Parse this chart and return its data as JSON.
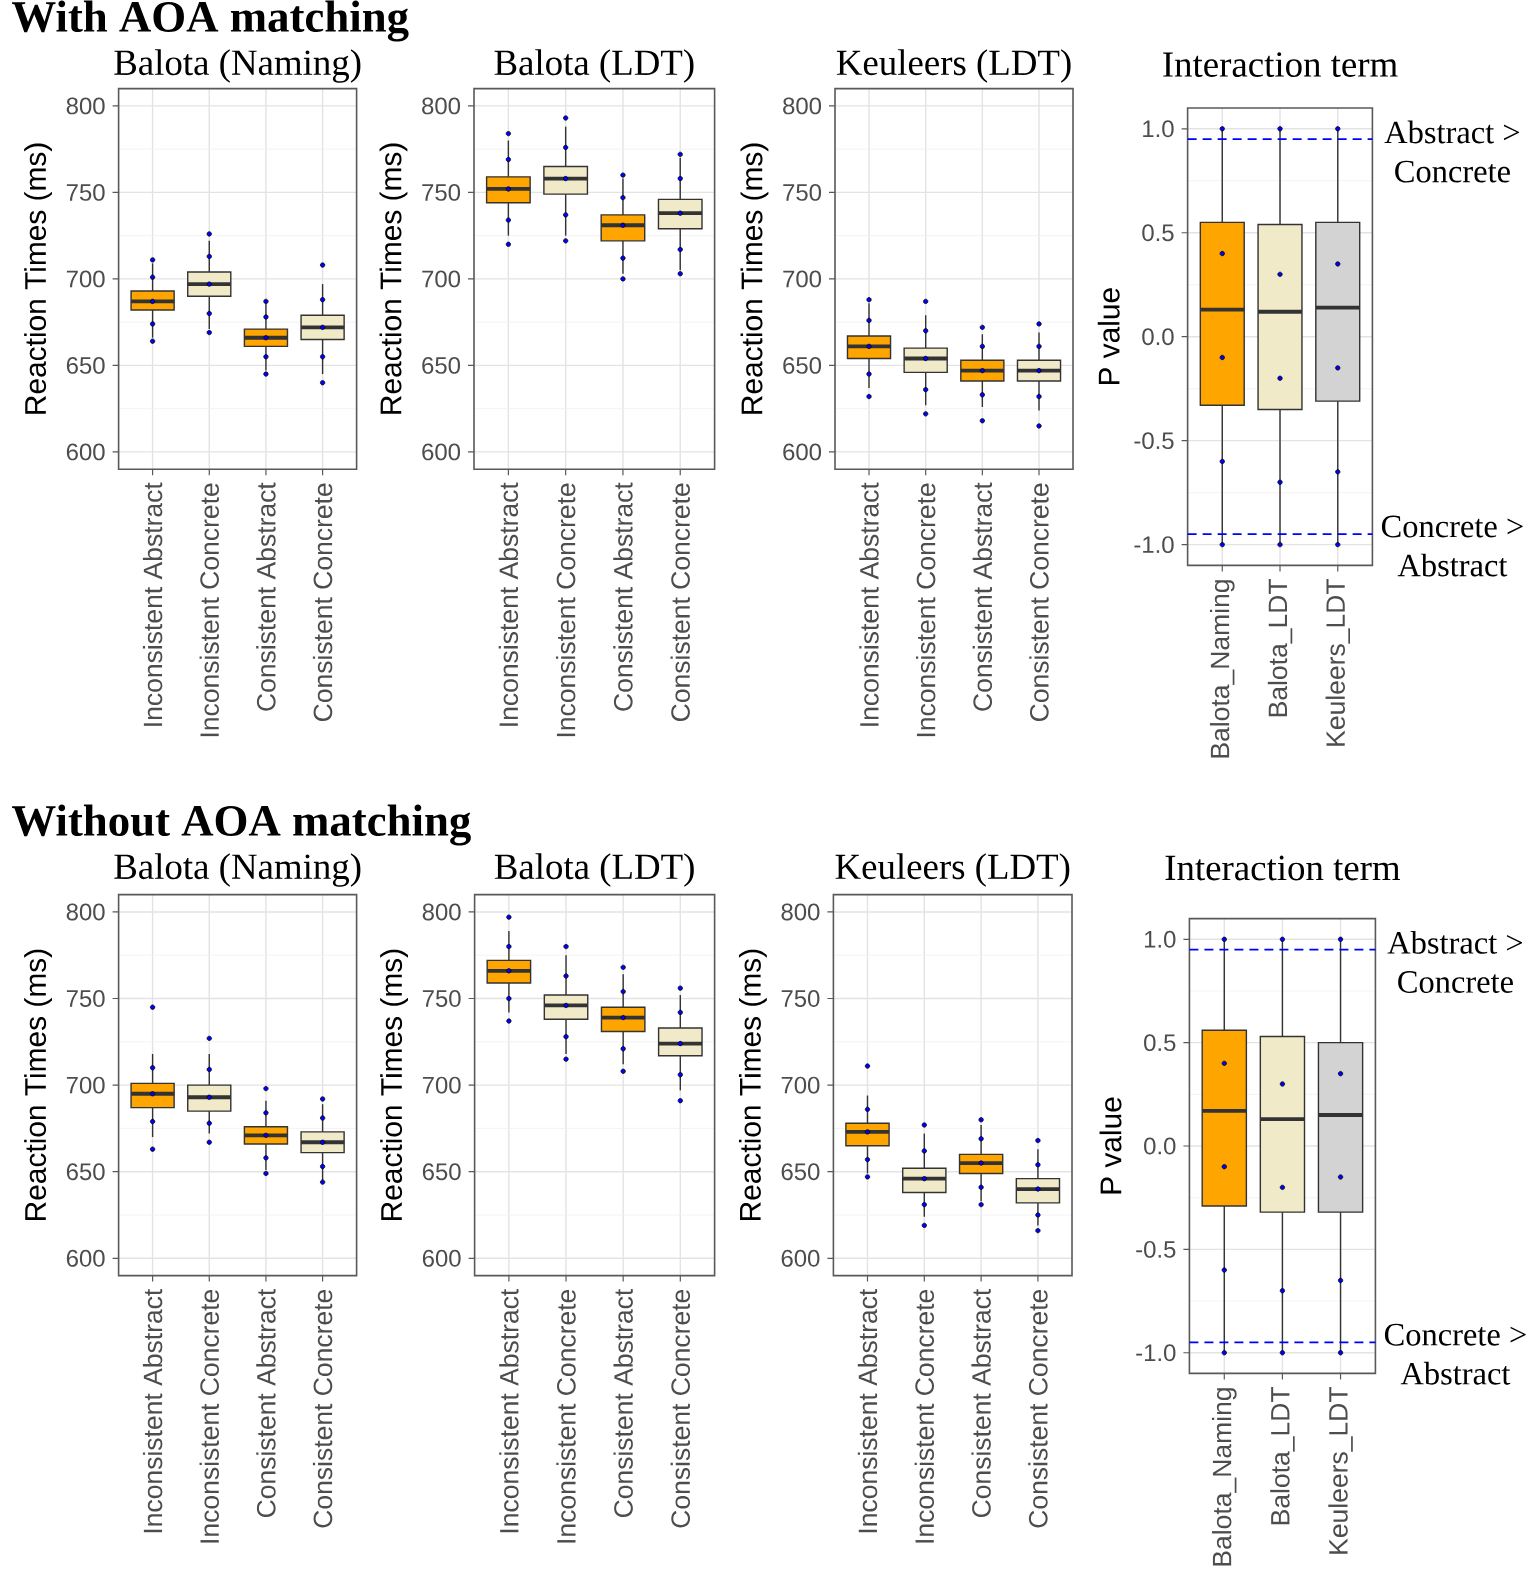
{
  "chart_data": [
    {
      "type": "box",
      "title": "Balota (Naming)",
      "ylabel": "Reaction Times (ms)",
      "annotations": [
        "With AOA matching"
      ],
      "categories": [
        "Inconsistent Abstract",
        "Inconsistent Concrete",
        "Consistent Abstract",
        "Consistent Concrete"
      ],
      "ylim": [
        590,
        810
      ],
      "yticks": [
        600,
        650,
        700,
        750,
        800
      ],
      "grid": true,
      "series": [
        {
          "type": "box",
          "colors": [
            "#ffa500",
            "#f0eac8",
            "#ffa500",
            "#f0eac8"
          ],
          "boxes": [
            {
              "low": 666,
              "q1": 682,
              "median": 687,
              "q3": 693,
              "high": 709
            },
            {
              "low": 671,
              "q1": 690,
              "median": 697,
              "q3": 704,
              "high": 722
            },
            {
              "low": 647,
              "q1": 661,
              "median": 666,
              "q3": 671,
              "high": 686
            },
            {
              "low": 645,
              "q1": 665,
              "median": 672,
              "q3": 679,
              "high": 697
            }
          ]
        },
        {
          "type": "scatter",
          "color": "#0000ff",
          "x": [
            "Inconsistent Abstract",
            "Inconsistent Abstract",
            "Inconsistent Abstract",
            "Inconsistent Abstract",
            "Inconsistent Abstract",
            "Inconsistent Concrete",
            "Inconsistent Concrete",
            "Inconsistent Concrete",
            "Inconsistent Concrete",
            "Inconsistent Concrete",
            "Consistent Abstract",
            "Consistent Abstract",
            "Consistent Abstract",
            "Consistent Abstract",
            "Consistent Abstract",
            "Consistent Concrete",
            "Consistent Concrete",
            "Consistent Concrete",
            "Consistent Concrete",
            "Consistent Concrete"
          ],
          "values": [
            664,
            674,
            687,
            701,
            711,
            669,
            680,
            697,
            713,
            726,
            645,
            655,
            666,
            678,
            687,
            640,
            655,
            672,
            688,
            708
          ]
        }
      ]
    },
    {
      "type": "box",
      "title": "Balota (LDT)",
      "ylabel": "Reaction Times (ms)",
      "categories": [
        "Inconsistent Abstract",
        "Inconsistent Concrete",
        "Consistent Abstract",
        "Consistent Concrete"
      ],
      "ylim": [
        590,
        810
      ],
      "yticks": [
        600,
        650,
        700,
        750,
        800
      ],
      "grid": true,
      "series": [
        {
          "type": "box",
          "colors": [
            "#ffa500",
            "#f0eac8",
            "#ffa500",
            "#f0eac8"
          ],
          "boxes": [
            {
              "low": 725,
              "q1": 744,
              "median": 752,
              "q3": 759,
              "high": 780
            },
            {
              "low": 725,
              "q1": 749,
              "median": 758,
              "q3": 765,
              "high": 788
            },
            {
              "low": 703,
              "q1": 722,
              "median": 731,
              "q3": 737,
              "high": 758
            },
            {
              "low": 705,
              "q1": 729,
              "median": 738,
              "q3": 746,
              "high": 770
            }
          ]
        },
        {
          "type": "scatter",
          "color": "#0000ff",
          "x": [
            "Inconsistent Abstract",
            "Inconsistent Abstract",
            "Inconsistent Abstract",
            "Inconsistent Abstract",
            "Inconsistent Abstract",
            "Inconsistent Concrete",
            "Inconsistent Concrete",
            "Inconsistent Concrete",
            "Inconsistent Concrete",
            "Inconsistent Concrete",
            "Consistent Abstract",
            "Consistent Abstract",
            "Consistent Abstract",
            "Consistent Abstract",
            "Consistent Abstract",
            "Consistent Concrete",
            "Consistent Concrete",
            "Consistent Concrete",
            "Consistent Concrete",
            "Consistent Concrete"
          ],
          "values": [
            720,
            734,
            752,
            769,
            784,
            722,
            737,
            758,
            776,
            793,
            700,
            712,
            731,
            747,
            760,
            703,
            717,
            738,
            758,
            772
          ]
        }
      ]
    },
    {
      "type": "box",
      "title": "Keuleers (LDT)",
      "ylabel": "Reaction Times (ms)",
      "categories": [
        "Inconsistent Abstract",
        "Inconsistent Concrete",
        "Consistent Abstract",
        "Consistent Concrete"
      ],
      "ylim": [
        590,
        810
      ],
      "yticks": [
        600,
        650,
        700,
        750,
        800
      ],
      "grid": true,
      "series": [
        {
          "type": "box",
          "colors": [
            "#ffa500",
            "#f0eac8",
            "#ffa500",
            "#f0eac8"
          ],
          "boxes": [
            {
              "low": 637,
              "q1": 654,
              "median": 661,
              "q3": 667,
              "high": 686
            },
            {
              "low": 627,
              "q1": 646,
              "median": 654,
              "q3": 660,
              "high": 679
            },
            {
              "low": 626,
              "q1": 641,
              "median": 647,
              "q3": 653,
              "high": 668
            },
            {
              "low": 624,
              "q1": 641,
              "median": 647,
              "q3": 653,
              "high": 669
            }
          ]
        },
        {
          "type": "scatter",
          "color": "#0000ff",
          "x": [
            "Inconsistent Abstract",
            "Inconsistent Abstract",
            "Inconsistent Abstract",
            "Inconsistent Abstract",
            "Inconsistent Abstract",
            "Inconsistent Concrete",
            "Inconsistent Concrete",
            "Inconsistent Concrete",
            "Inconsistent Concrete",
            "Inconsistent Concrete",
            "Consistent Abstract",
            "Consistent Abstract",
            "Consistent Abstract",
            "Consistent Abstract",
            "Consistent Abstract",
            "Consistent Concrete",
            "Consistent Concrete",
            "Consistent Concrete",
            "Consistent Concrete",
            "Consistent Concrete"
          ],
          "values": [
            632,
            645,
            661,
            676,
            688,
            622,
            636,
            654,
            670,
            687,
            618,
            633,
            647,
            661,
            672,
            615,
            632,
            647,
            661,
            674
          ]
        }
      ]
    },
    {
      "type": "box",
      "title": "Interaction term",
      "ylabel": "P value",
      "categories": [
        "Balota_Naming",
        "Balota_LDT",
        "Keuleers_LDT"
      ],
      "ylim": [
        -1.1,
        1.1
      ],
      "yticks": [
        {
          "value": -1,
          "label": "-1.0"
        },
        {
          "value": -0.5,
          "label": "-0.5"
        },
        {
          "value": 0,
          "label": "0.0"
        },
        {
          "value": 0.5,
          "label": "0.5"
        },
        {
          "value": 1,
          "label": "1.0"
        }
      ],
      "grid": true,
      "ref_lines": [
        {
          "axis": "y",
          "value": 0.95,
          "label": "Abstract > Concrete",
          "color": "#0000ff",
          "line_style": "dashed"
        },
        {
          "axis": "y",
          "value": -0.95,
          "label": "Concrete > Abstract",
          "color": "#0000ff",
          "line_style": "dashed"
        }
      ],
      "series": [
        {
          "type": "box",
          "colors": [
            "#ffa500",
            "#f0eac8",
            "#d3d3d3"
          ],
          "boxes": [
            {
              "low": -1,
              "q1": -0.33,
              "median": 0.13,
              "q3": 0.55,
              "high": 1
            },
            {
              "low": -1,
              "q1": -0.35,
              "median": 0.12,
              "q3": 0.54,
              "high": 1
            },
            {
              "low": -1,
              "q1": -0.31,
              "median": 0.14,
              "q3": 0.55,
              "high": 1
            }
          ]
        },
        {
          "type": "scatter",
          "color": "#0000ff",
          "x": [
            "Balota_Naming",
            "Balota_Naming",
            "Balota_Naming",
            "Balota_Naming",
            "Balota_Naming",
            "Balota_LDT",
            "Balota_LDT",
            "Balota_LDT",
            "Balota_LDT",
            "Balota_LDT",
            "Keuleers_LDT",
            "Keuleers_LDT",
            "Keuleers_LDT",
            "Keuleers_LDT",
            "Keuleers_LDT"
          ],
          "values": [
            -1,
            -0.6,
            -0.1,
            0.4,
            1,
            -1,
            -0.7,
            -0.2,
            0.3,
            1,
            -1,
            -0.65,
            -0.15,
            0.35,
            1
          ]
        }
      ]
    },
    {
      "type": "box",
      "title": "Balota (Naming)",
      "ylabel": "Reaction Times (ms)",
      "annotations": [
        "Without AOA matching"
      ],
      "categories": [
        "Inconsistent Abstract",
        "Inconsistent Concrete",
        "Consistent Abstract",
        "Consistent Concrete"
      ],
      "ylim": [
        590,
        810
      ],
      "yticks": [
        600,
        650,
        700,
        750,
        800
      ],
      "grid": true,
      "series": [
        {
          "type": "box",
          "colors": [
            "#ffa500",
            "#f0eac8",
            "#ffa500",
            "#f0eac8"
          ],
          "boxes": [
            {
              "low": 670,
              "q1": 687,
              "median": 695,
              "q3": 701,
              "high": 718
            },
            {
              "low": 672,
              "q1": 685,
              "median": 693,
              "q3": 700,
              "high": 718
            },
            {
              "low": 651,
              "q1": 666,
              "median": 671,
              "q3": 676,
              "high": 691
            },
            {
              "low": 645,
              "q1": 661,
              "median": 667,
              "q3": 673,
              "high": 689
            }
          ]
        },
        {
          "type": "scatter",
          "color": "#0000ff",
          "x": [
            "Inconsistent Abstract",
            "Inconsistent Abstract",
            "Inconsistent Abstract",
            "Inconsistent Abstract",
            "Inconsistent Abstract",
            "Inconsistent Concrete",
            "Inconsistent Concrete",
            "Inconsistent Concrete",
            "Inconsistent Concrete",
            "Inconsistent Concrete",
            "Consistent Abstract",
            "Consistent Abstract",
            "Consistent Abstract",
            "Consistent Abstract",
            "Consistent Abstract",
            "Consistent Concrete",
            "Consistent Concrete",
            "Consistent Concrete",
            "Consistent Concrete",
            "Consistent Concrete"
          ],
          "values": [
            663,
            679,
            695,
            710,
            745,
            667,
            678,
            693,
            709,
            727,
            649,
            658,
            671,
            684,
            698,
            644,
            653,
            667,
            681,
            692
          ]
        }
      ]
    },
    {
      "type": "box",
      "title": "Balota (LDT)",
      "ylabel": "Reaction Times (ms)",
      "categories": [
        "Inconsistent Abstract",
        "Inconsistent Concrete",
        "Consistent Abstract",
        "Consistent Concrete"
      ],
      "ylim": [
        590,
        810
      ],
      "yticks": [
        600,
        650,
        700,
        750,
        800
      ],
      "grid": true,
      "series": [
        {
          "type": "box",
          "colors": [
            "#ffa500",
            "#f0eac8",
            "#ffa500",
            "#f0eac8"
          ],
          "boxes": [
            {
              "low": 742,
              "q1": 759,
              "median": 766,
              "q3": 772,
              "high": 789
            },
            {
              "low": 718,
              "q1": 738,
              "median": 746,
              "q3": 752,
              "high": 775
            },
            {
              "low": 712,
              "q1": 731,
              "median": 739,
              "q3": 745,
              "high": 764
            },
            {
              "low": 697,
              "q1": 717,
              "median": 724,
              "q3": 733,
              "high": 752
            }
          ]
        },
        {
          "type": "scatter",
          "color": "#0000ff",
          "x": [
            "Inconsistent Abstract",
            "Inconsistent Abstract",
            "Inconsistent Abstract",
            "Inconsistent Abstract",
            "Inconsistent Abstract",
            "Inconsistent Concrete",
            "Inconsistent Concrete",
            "Inconsistent Concrete",
            "Inconsistent Concrete",
            "Inconsistent Concrete",
            "Consistent Abstract",
            "Consistent Abstract",
            "Consistent Abstract",
            "Consistent Abstract",
            "Consistent Abstract",
            "Consistent Concrete",
            "Consistent Concrete",
            "Consistent Concrete",
            "Consistent Concrete",
            "Consistent Concrete"
          ],
          "values": [
            737,
            750,
            766,
            780,
            797,
            715,
            728,
            746,
            763,
            780,
            708,
            721,
            739,
            754,
            768,
            691,
            706,
            724,
            742,
            756
          ]
        }
      ]
    },
    {
      "type": "box",
      "title": "Keuleers (LDT)",
      "ylabel": "Reaction Times (ms)",
      "categories": [
        "Inconsistent Abstract",
        "Inconsistent Concrete",
        "Consistent Abstract",
        "Consistent Concrete"
      ],
      "ylim": [
        590,
        810
      ],
      "yticks": [
        600,
        650,
        700,
        750,
        800
      ],
      "grid": true,
      "series": [
        {
          "type": "box",
          "colors": [
            "#ffa500",
            "#f0eac8",
            "#ffa500",
            "#f0eac8"
          ],
          "boxes": [
            {
              "low": 649,
              "q1": 665,
              "median": 673,
              "q3": 678,
              "high": 694
            },
            {
              "low": 624,
              "q1": 638,
              "median": 646,
              "q3": 652,
              "high": 672
            },
            {
              "low": 633,
              "q1": 649,
              "median": 655,
              "q3": 660,
              "high": 677
            },
            {
              "low": 619,
              "q1": 632,
              "median": 640,
              "q3": 646,
              "high": 663
            }
          ]
        },
        {
          "type": "scatter",
          "color": "#0000ff",
          "x": [
            "Inconsistent Abstract",
            "Inconsistent Abstract",
            "Inconsistent Abstract",
            "Inconsistent Abstract",
            "Inconsistent Abstract",
            "Inconsistent Concrete",
            "Inconsistent Concrete",
            "Inconsistent Concrete",
            "Inconsistent Concrete",
            "Inconsistent Concrete",
            "Consistent Abstract",
            "Consistent Abstract",
            "Consistent Abstract",
            "Consistent Abstract",
            "Consistent Abstract",
            "Consistent Concrete",
            "Consistent Concrete",
            "Consistent Concrete",
            "Consistent Concrete",
            "Consistent Concrete"
          ],
          "values": [
            647,
            657,
            673,
            686,
            711,
            619,
            631,
            646,
            662,
            677,
            631,
            641,
            655,
            669,
            680,
            616,
            625,
            640,
            654,
            668
          ]
        }
      ]
    },
    {
      "type": "box",
      "title": "Interaction term",
      "ylabel": "P value",
      "categories": [
        "Balota_Naming",
        "Balota_LDT",
        "Keuleers_LDT"
      ],
      "ylim": [
        -1.1,
        1.1
      ],
      "yticks": [
        {
          "value": -1,
          "label": "-1.0"
        },
        {
          "value": -0.5,
          "label": "-0.5"
        },
        {
          "value": 0,
          "label": "0.0"
        },
        {
          "value": 0.5,
          "label": "0.5"
        },
        {
          "value": 1,
          "label": "1.0"
        }
      ],
      "grid": true,
      "ref_lines": [
        {
          "axis": "y",
          "value": 0.95,
          "label": "Abstract > Concrete",
          "color": "#0000ff",
          "line_style": "dashed"
        },
        {
          "axis": "y",
          "value": -0.95,
          "label": "Concrete > Abstract",
          "color": "#0000ff",
          "line_style": "dashed"
        }
      ],
      "series": [
        {
          "type": "box",
          "colors": [
            "#ffa500",
            "#f0eac8",
            "#d3d3d3"
          ],
          "boxes": [
            {
              "low": -1,
              "q1": -0.29,
              "median": 0.17,
              "q3": 0.56,
              "high": 1
            },
            {
              "low": -1,
              "q1": -0.32,
              "median": 0.13,
              "q3": 0.53,
              "high": 1
            },
            {
              "low": -1,
              "q1": -0.32,
              "median": 0.15,
              "q3": 0.5,
              "high": 1
            }
          ]
        },
        {
          "type": "scatter",
          "color": "#0000ff",
          "x": [
            "Balota_Naming",
            "Balota_Naming",
            "Balota_Naming",
            "Balota_Naming",
            "Balota_Naming",
            "Balota_LDT",
            "Balota_LDT",
            "Balota_LDT",
            "Balota_LDT",
            "Balota_LDT",
            "Keuleers_LDT",
            "Keuleers_LDT",
            "Keuleers_LDT",
            "Keuleers_LDT",
            "Keuleers_LDT"
          ],
          "values": [
            -1,
            -0.6,
            -0.1,
            0.4,
            1,
            -1,
            -0.7,
            -0.2,
            0.3,
            1,
            -1,
            -0.65,
            -0.15,
            0.35,
            1
          ]
        }
      ]
    }
  ]
}
